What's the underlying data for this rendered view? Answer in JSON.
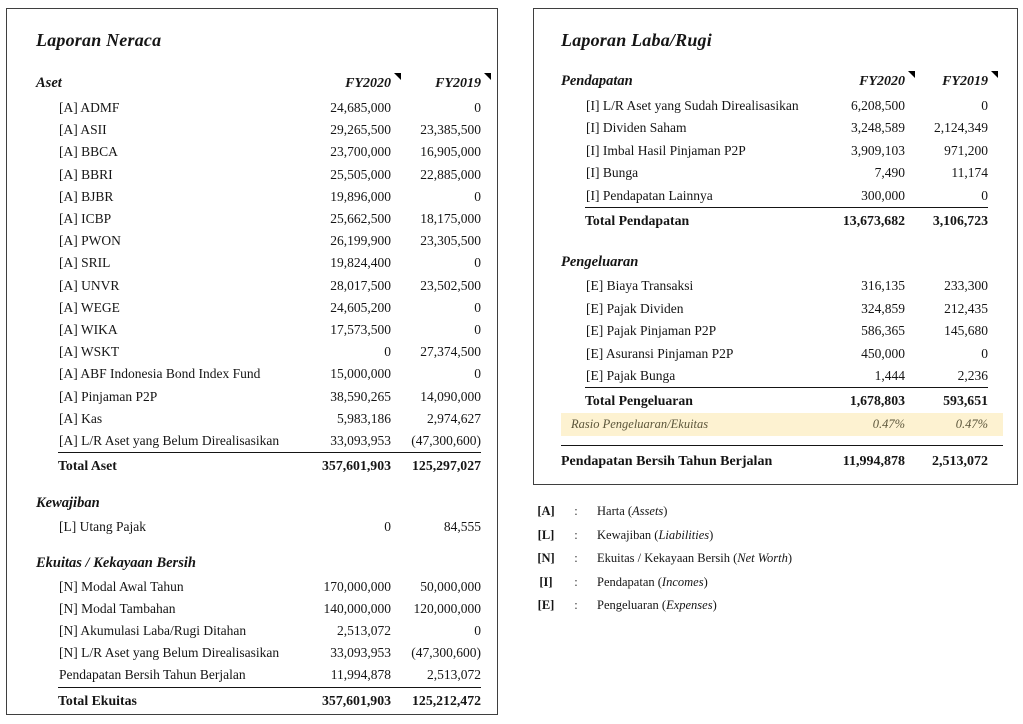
{
  "colors": {
    "panel_border": "#3f3f3f",
    "text": "#151515",
    "highlight_bg": "#fdf2d1",
    "highlight_text": "#5c563b",
    "note_marker": "#000000"
  },
  "neraca": {
    "title": "Laporan Neraca",
    "columns": {
      "fy2020": "FY2020",
      "fy2019": "FY2019"
    },
    "aset": {
      "header": "Aset",
      "rows": [
        {
          "label": "[A] ADMF",
          "fy2020": "24,685,000",
          "fy2019": "0"
        },
        {
          "label": "[A] ASII",
          "fy2020": "29,265,500",
          "fy2019": "23,385,500"
        },
        {
          "label": "[A] BBCA",
          "fy2020": "23,700,000",
          "fy2019": "16,905,000"
        },
        {
          "label": "[A] BBRI",
          "fy2020": "25,505,000",
          "fy2019": "22,885,000"
        },
        {
          "label": "[A] BJBR",
          "fy2020": "19,896,000",
          "fy2019": "0"
        },
        {
          "label": "[A] ICBP",
          "fy2020": "25,662,500",
          "fy2019": "18,175,000"
        },
        {
          "label": "[A] PWON",
          "fy2020": "26,199,900",
          "fy2019": "23,305,500"
        },
        {
          "label": "[A] SRIL",
          "fy2020": "19,824,400",
          "fy2019": "0"
        },
        {
          "label": "[A] UNVR",
          "fy2020": "28,017,500",
          "fy2019": "23,502,500"
        },
        {
          "label": "[A] WEGE",
          "fy2020": "24,605,200",
          "fy2019": "0"
        },
        {
          "label": "[A] WIKA",
          "fy2020": "17,573,500",
          "fy2019": "0"
        },
        {
          "label": "[A] WSKT",
          "fy2020": "0",
          "fy2019": "27,374,500"
        },
        {
          "label": "[A] ABF Indonesia Bond Index Fund",
          "fy2020": "15,000,000",
          "fy2019": "0"
        },
        {
          "label": "[A] Pinjaman P2P",
          "fy2020": "38,590,265",
          "fy2019": "14,090,000"
        },
        {
          "label": "[A] Kas",
          "fy2020": "5,983,186",
          "fy2019": "2,974,627"
        },
        {
          "label": "[A] L/R Aset yang Belum Direalisasikan",
          "fy2020": "33,093,953",
          "fy2019": "(47,300,600)"
        }
      ],
      "total": {
        "label": "Total Aset",
        "fy2020": "357,601,903",
        "fy2019": "125,297,027"
      }
    },
    "kewajiban": {
      "header": "Kewajiban",
      "rows": [
        {
          "label": "[L] Utang Pajak",
          "fy2020": "0",
          "fy2019": "84,555"
        }
      ]
    },
    "ekuitas": {
      "header": "Ekuitas / Kekayaan Bersih",
      "rows": [
        {
          "label": "[N] Modal Awal Tahun",
          "fy2020": "170,000,000",
          "fy2019": "50,000,000"
        },
        {
          "label": "[N] Modal Tambahan",
          "fy2020": "140,000,000",
          "fy2019": "120,000,000"
        },
        {
          "label": "[N] Akumulasi Laba/Rugi Ditahan",
          "fy2020": "2,513,072",
          "fy2019": "0"
        },
        {
          "label": "[N] L/R Aset yang Belum Direalisasikan",
          "fy2020": "33,093,953",
          "fy2019": "(47,300,600)"
        },
        {
          "label": "Pendapatan Bersih Tahun Berjalan",
          "fy2020": "11,994,878",
          "fy2019": "2,513,072"
        }
      ],
      "total": {
        "label": "Total Ekuitas",
        "fy2020": "357,601,903",
        "fy2019": "125,212,472"
      }
    }
  },
  "labarugi": {
    "title": "Laporan Laba/Rugi",
    "columns": {
      "fy2020": "FY2020",
      "fy2019": "FY2019"
    },
    "pendapatan": {
      "header": "Pendapatan",
      "rows": [
        {
          "label": "[I] L/R Aset yang Sudah Direalisasikan",
          "fy2020": "6,208,500",
          "fy2019": "0"
        },
        {
          "label": "[I] Dividen Saham",
          "fy2020": "3,248,589",
          "fy2019": "2,124,349"
        },
        {
          "label": "[I] Imbal Hasil Pinjaman P2P",
          "fy2020": "3,909,103",
          "fy2019": "971,200"
        },
        {
          "label": "[I] Bunga",
          "fy2020": "7,490",
          "fy2019": "11,174"
        },
        {
          "label": "[I] Pendapatan Lainnya",
          "fy2020": "300,000",
          "fy2019": "0"
        }
      ],
      "total": {
        "label": "Total Pendapatan",
        "fy2020": "13,673,682",
        "fy2019": "3,106,723"
      }
    },
    "pengeluaran": {
      "header": "Pengeluaran",
      "rows": [
        {
          "label": "[E] Biaya Transaksi",
          "fy2020": "316,135",
          "fy2019": "233,300"
        },
        {
          "label": "[E] Pajak Dividen",
          "fy2020": "324,859",
          "fy2019": "212,435"
        },
        {
          "label": "[E] Pajak Pinjaman P2P",
          "fy2020": "586,365",
          "fy2019": "145,680"
        },
        {
          "label": "[E] Asuransi Pinjaman P2P",
          "fy2020": "450,000",
          "fy2019": "0"
        },
        {
          "label": "[E] Pajak Bunga",
          "fy2020": "1,444",
          "fy2019": "2,236"
        }
      ],
      "total": {
        "label": "Total Pengeluaran",
        "fy2020": "1,678,803",
        "fy2019": "593,651"
      },
      "rasio": {
        "label": "Rasio Pengeluaran/Ekuitas",
        "fy2020": "0.47%",
        "fy2019": "0.47%"
      }
    },
    "net": {
      "label": "Pendapatan Bersih Tahun Berjalan",
      "fy2020": "11,994,878",
      "fy2019": "2,513,072"
    }
  },
  "legend": {
    "colon": ":",
    "items": [
      {
        "code": "[A]",
        "pre": "Harta (",
        "italic": "Assets",
        "post": ")"
      },
      {
        "code": "[L]",
        "pre": "Kewajiban (",
        "italic": "Liabilities",
        "post": ")"
      },
      {
        "code": "[N]",
        "pre": "Ekuitas / Kekayaan Bersih (",
        "italic": "Net Worth",
        "post": ")"
      },
      {
        "code": "[I]",
        "pre": "Pendapatan (",
        "italic": "Incomes",
        "post": ")"
      },
      {
        "code": "[E]",
        "pre": "Pengeluaran (",
        "italic": "Expenses",
        "post": ")"
      }
    ]
  }
}
